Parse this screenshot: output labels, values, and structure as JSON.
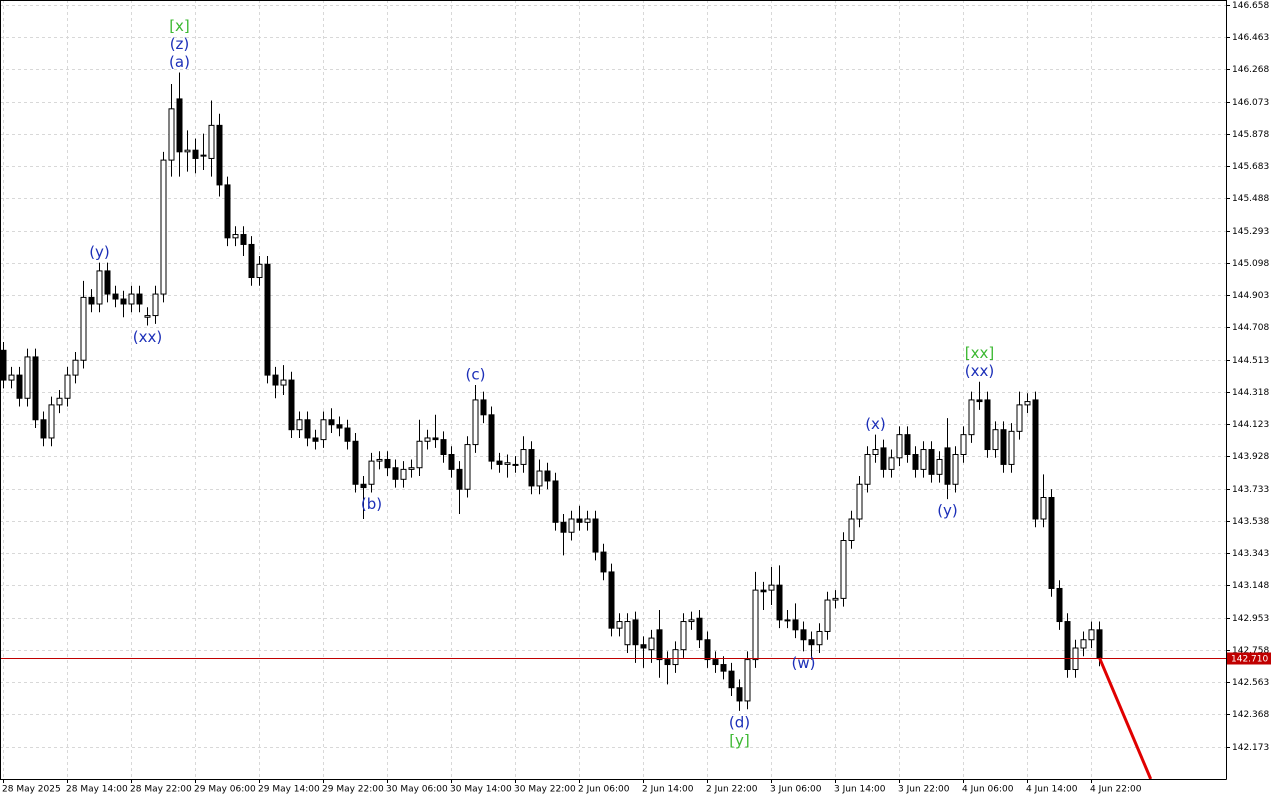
{
  "chart_data": {
    "type": "candlestick",
    "ylim": [
      141.978,
      146.688
    ],
    "yticks": [
      146.658,
      146.463,
      146.268,
      146.073,
      145.878,
      145.683,
      145.488,
      145.293,
      145.098,
      144.903,
      144.708,
      144.513,
      144.318,
      144.123,
      143.928,
      143.733,
      143.538,
      143.343,
      143.148,
      142.953,
      142.758,
      142.563,
      142.368,
      142.173
    ],
    "grid": true,
    "up_color": "#ffffff",
    "down_color": "#000000",
    "current_price": {
      "value": 142.71,
      "label": "142.710",
      "color": "#c00000"
    },
    "categories": [
      "28 May 2025",
      null,
      null,
      null,
      null,
      null,
      null,
      null,
      "28 May 14:00",
      null,
      null,
      null,
      null,
      null,
      null,
      null,
      "28 May 22:00",
      null,
      null,
      null,
      null,
      null,
      null,
      null,
      "29 May 06:00",
      null,
      null,
      null,
      null,
      null,
      null,
      null,
      "29 May 14:00",
      null,
      null,
      null,
      null,
      null,
      null,
      null,
      "29 May 22:00",
      null,
      null,
      null,
      null,
      null,
      null,
      null,
      "30 May 06:00",
      null,
      null,
      null,
      null,
      null,
      null,
      null,
      "30 May 14:00",
      null,
      null,
      null,
      null,
      null,
      null,
      null,
      "30 May 22:00",
      null,
      null,
      null,
      null,
      null,
      null,
      null,
      "2 Jun 06:00",
      null,
      null,
      null,
      null,
      null,
      null,
      null,
      "2 Jun 14:00",
      null,
      null,
      null,
      null,
      null,
      null,
      null,
      "2 Jun 22:00",
      null,
      null,
      null,
      null,
      null,
      null,
      null,
      "3 Jun 06:00",
      null,
      null,
      null,
      null,
      null,
      null,
      null,
      "3 Jun 14:00",
      null,
      null,
      null,
      null,
      null,
      null,
      null,
      "3 Jun 22:00",
      null,
      null,
      null,
      null,
      null,
      null,
      null,
      "4 Jun 06:00",
      null,
      null,
      null,
      null,
      null,
      null,
      null,
      "4 Jun 14:00",
      null,
      null,
      null,
      null,
      null,
      null,
      null,
      "4 Jun 22:00",
      null
    ],
    "ohlc": [
      [
        144.57,
        144.62,
        144.34,
        144.39
      ],
      [
        144.39,
        144.47,
        144.34,
        144.42
      ],
      [
        144.42,
        144.47,
        144.23,
        144.28
      ],
      [
        144.28,
        144.58,
        144.23,
        144.53
      ],
      [
        144.53,
        144.58,
        144.1,
        144.15
      ],
      [
        144.15,
        144.2,
        143.99,
        144.04
      ],
      [
        144.04,
        144.29,
        143.99,
        144.24
      ],
      [
        144.24,
        144.33,
        144.19,
        144.28
      ],
      [
        144.28,
        144.47,
        144.23,
        144.42
      ],
      [
        144.42,
        144.56,
        144.37,
        144.51
      ],
      [
        144.51,
        144.99,
        144.46,
        144.89
      ],
      [
        144.89,
        144.94,
        144.8,
        144.85
      ],
      [
        144.85,
        145.1,
        144.8,
        145.05
      ],
      [
        145.05,
        145.1,
        144.86,
        144.91
      ],
      [
        144.91,
        144.96,
        144.83,
        144.88
      ],
      [
        144.88,
        144.93,
        144.77,
        144.85
      ],
      [
        144.85,
        144.96,
        144.8,
        144.91
      ],
      [
        144.91,
        144.96,
        144.8,
        144.85
      ],
      [
        144.77,
        144.83,
        144.72,
        144.78
      ],
      [
        144.78,
        144.96,
        144.73,
        144.91
      ],
      [
        144.91,
        145.77,
        144.86,
        145.72
      ],
      [
        145.72,
        146.18,
        145.62,
        146.03
      ],
      [
        146.09,
        146.25,
        145.62,
        145.77
      ],
      [
        145.77,
        145.9,
        145.65,
        145.78
      ],
      [
        145.78,
        145.85,
        145.64,
        145.73
      ],
      [
        145.75,
        145.88,
        145.66,
        145.75
      ],
      [
        145.73,
        146.08,
        145.62,
        145.93
      ],
      [
        145.93,
        146.0,
        145.5,
        145.57
      ],
      [
        145.57,
        145.62,
        145.2,
        145.25
      ],
      [
        145.25,
        145.32,
        145.2,
        145.27
      ],
      [
        145.27,
        145.32,
        145.14,
        145.21
      ],
      [
        145.21,
        145.26,
        144.96,
        145.01
      ],
      [
        145.01,
        145.14,
        144.96,
        145.09
      ],
      [
        145.09,
        145.14,
        144.37,
        144.42
      ],
      [
        144.42,
        144.47,
        144.28,
        144.36
      ],
      [
        144.36,
        144.48,
        144.3,
        144.39
      ],
      [
        144.39,
        144.44,
        144.04,
        144.09
      ],
      [
        144.09,
        144.2,
        144.04,
        144.15
      ],
      [
        144.15,
        144.2,
        143.99,
        144.04
      ],
      [
        144.04,
        144.09,
        143.97,
        144.02
      ],
      [
        144.03,
        144.2,
        143.98,
        144.15
      ],
      [
        144.15,
        144.22,
        144.07,
        144.12
      ],
      [
        144.12,
        144.17,
        144.05,
        144.1
      ],
      [
        144.1,
        144.15,
        143.97,
        144.02
      ],
      [
        144.02,
        144.07,
        143.71,
        143.76
      ],
      [
        143.76,
        143.81,
        143.55,
        143.74
      ],
      [
        143.76,
        143.95,
        143.71,
        143.9
      ],
      [
        143.9,
        143.96,
        143.85,
        143.91
      ],
      [
        143.91,
        143.96,
        143.81,
        143.86
      ],
      [
        143.86,
        143.91,
        143.74,
        143.79
      ],
      [
        143.79,
        143.9,
        143.74,
        143.85
      ],
      [
        143.85,
        143.91,
        143.8,
        143.86
      ],
      [
        143.86,
        144.15,
        143.81,
        144.02
      ],
      [
        144.02,
        144.09,
        143.97,
        144.04
      ],
      [
        144.04,
        144.18,
        143.98,
        144.03
      ],
      [
        144.03,
        144.08,
        143.89,
        143.94
      ],
      [
        143.94,
        143.99,
        143.8,
        143.85
      ],
      [
        143.85,
        143.9,
        143.58,
        143.73
      ],
      [
        143.73,
        144.05,
        143.68,
        144.0
      ],
      [
        144.0,
        144.36,
        143.95,
        144.27
      ],
      [
        144.27,
        144.32,
        144.13,
        144.18
      ],
      [
        144.18,
        144.23,
        143.85,
        143.9
      ],
      [
        143.9,
        143.95,
        143.83,
        143.88
      ],
      [
        143.88,
        143.94,
        143.8,
        143.89
      ],
      [
        143.88,
        143.93,
        143.83,
        143.88
      ],
      [
        143.88,
        144.05,
        143.83,
        143.97
      ],
      [
        143.97,
        144.02,
        143.7,
        143.75
      ],
      [
        143.75,
        143.91,
        143.7,
        143.84
      ],
      [
        143.84,
        143.89,
        143.73,
        143.78
      ],
      [
        143.78,
        143.83,
        143.48,
        143.53
      ],
      [
        143.53,
        143.58,
        143.33,
        143.47
      ],
      [
        143.47,
        143.6,
        143.42,
        143.55
      ],
      [
        143.55,
        143.63,
        143.48,
        143.53
      ],
      [
        143.53,
        143.6,
        143.48,
        143.55
      ],
      [
        143.55,
        143.6,
        143.3,
        143.35
      ],
      [
        143.35,
        143.4,
        143.18,
        143.23
      ],
      [
        143.23,
        143.28,
        142.84,
        142.89
      ],
      [
        142.89,
        142.98,
        142.84,
        142.93
      ],
      [
        142.79,
        142.98,
        142.74,
        142.93
      ],
      [
        142.94,
        142.99,
        142.68,
        142.79
      ],
      [
        142.79,
        142.84,
        142.65,
        142.77
      ],
      [
        142.76,
        142.88,
        142.68,
        142.83
      ],
      [
        142.88,
        143.0,
        142.59,
        142.7
      ],
      [
        142.7,
        142.75,
        142.55,
        142.67
      ],
      [
        142.67,
        142.81,
        142.62,
        142.76
      ],
      [
        142.76,
        142.98,
        142.71,
        142.93
      ],
      [
        142.93,
        142.99,
        142.88,
        142.94
      ],
      [
        142.95,
        143.0,
        142.77,
        142.82
      ],
      [
        142.82,
        142.87,
        142.65,
        142.7
      ],
      [
        142.7,
        142.75,
        142.62,
        142.67
      ],
      [
        142.67,
        142.72,
        142.58,
        142.63
      ],
      [
        142.63,
        142.68,
        142.48,
        142.53
      ],
      [
        142.53,
        142.58,
        142.39,
        142.45
      ],
      [
        142.45,
        142.75,
        142.4,
        142.7
      ],
      [
        142.7,
        143.23,
        142.65,
        143.12
      ],
      [
        143.12,
        143.17,
        143.0,
        143.11
      ],
      [
        143.12,
        143.26,
        143.03,
        143.15
      ],
      [
        143.15,
        143.27,
        142.89,
        142.94
      ],
      [
        142.94,
        143.0,
        142.89,
        142.94
      ],
      [
        142.94,
        143.04,
        142.83,
        142.88
      ],
      [
        142.88,
        142.93,
        142.75,
        142.82
      ],
      [
        142.82,
        142.87,
        142.7,
        142.79
      ],
      [
        142.79,
        142.92,
        142.74,
        142.87
      ],
      [
        142.87,
        143.11,
        142.82,
        143.06
      ],
      [
        143.06,
        143.12,
        143.01,
        143.07
      ],
      [
        143.07,
        143.47,
        143.02,
        143.42
      ],
      [
        143.42,
        143.6,
        143.37,
        143.55
      ],
      [
        143.55,
        143.81,
        143.5,
        143.76
      ],
      [
        143.76,
        143.99,
        143.71,
        143.94
      ],
      [
        143.94,
        144.06,
        143.89,
        143.97
      ],
      [
        143.98,
        144.03,
        143.8,
        143.85
      ],
      [
        143.85,
        143.97,
        143.8,
        143.92
      ],
      [
        143.92,
        144.11,
        143.87,
        144.06
      ],
      [
        144.06,
        144.11,
        143.89,
        143.94
      ],
      [
        143.94,
        143.99,
        143.8,
        143.85
      ],
      [
        143.85,
        144.02,
        143.8,
        143.97
      ],
      [
        143.97,
        144.02,
        143.77,
        143.82
      ],
      [
        143.82,
        143.96,
        143.77,
        143.91
      ],
      [
        143.98,
        144.16,
        143.67,
        143.76
      ],
      [
        143.76,
        143.99,
        143.71,
        143.94
      ],
      [
        143.94,
        144.11,
        143.89,
        144.06
      ],
      [
        144.06,
        144.32,
        144.01,
        144.27
      ],
      [
        144.27,
        144.38,
        144.21,
        144.26
      ],
      [
        144.27,
        144.32,
        143.92,
        143.97
      ],
      [
        143.97,
        144.14,
        143.92,
        144.09
      ],
      [
        144.09,
        144.14,
        143.83,
        143.88
      ],
      [
        143.88,
        144.13,
        143.83,
        144.08
      ],
      [
        144.08,
        144.32,
        144.03,
        144.24
      ],
      [
        144.24,
        144.31,
        144.19,
        144.26
      ],
      [
        144.27,
        144.32,
        143.5,
        143.55
      ],
      [
        143.55,
        143.82,
        143.5,
        143.68
      ],
      [
        143.68,
        143.73,
        143.08,
        143.13
      ],
      [
        143.13,
        143.18,
        142.88,
        142.93
      ],
      [
        142.93,
        142.98,
        142.59,
        142.64
      ],
      [
        142.64,
        142.82,
        142.59,
        142.77
      ],
      [
        142.77,
        142.87,
        142.72,
        142.82
      ],
      [
        142.82,
        142.93,
        142.77,
        142.88
      ],
      [
        142.88,
        142.93,
        142.66,
        142.71
      ]
    ],
    "forecast": {
      "color": "#e00000",
      "x": [
        137,
        143.4
      ],
      "values": [
        142.71,
        141.978
      ]
    },
    "annotations": [
      {
        "index": 22,
        "side": "above",
        "labels": [
          {
            "text": "(a)",
            "color": "#1c2fb8"
          },
          {
            "text": "(z)",
            "color": "#1c2fb8"
          },
          {
            "text": "[x]",
            "color": "#3cb832"
          }
        ]
      },
      {
        "index": 12,
        "side": "above",
        "labels": [
          {
            "text": "(y)",
            "color": "#1c2fb8"
          }
        ]
      },
      {
        "index": 18,
        "side": "below",
        "labels": [
          {
            "text": "(xx)",
            "color": "#1c2fb8"
          }
        ]
      },
      {
        "index": 46,
        "side": "below",
        "labels": [
          {
            "text": "(b)",
            "color": "#1c2fb8"
          }
        ]
      },
      {
        "index": 59,
        "side": "above",
        "labels": [
          {
            "text": "(c)",
            "color": "#1c2fb8"
          }
        ]
      },
      {
        "index": 92,
        "side": "below",
        "labels": [
          {
            "text": "(d)",
            "color": "#1c2fb8"
          },
          {
            "text": "[y]",
            "color": "#3cb832"
          }
        ]
      },
      {
        "index": 100,
        "side": "below",
        "labels": [
          {
            "text": "(w)",
            "color": "#1c2fb8"
          }
        ]
      },
      {
        "index": 109,
        "side": "above",
        "labels": [
          {
            "text": "(x)",
            "color": "#1c2fb8"
          }
        ]
      },
      {
        "index": 118,
        "side": "below",
        "labels": [
          {
            "text": "(y)",
            "color": "#1c2fb8"
          }
        ]
      },
      {
        "index": 122,
        "side": "above",
        "labels": [
          {
            "text": "(xx)",
            "color": "#1c2fb8"
          },
          {
            "text": "[xx]",
            "color": "#3cb832"
          }
        ]
      }
    ]
  }
}
